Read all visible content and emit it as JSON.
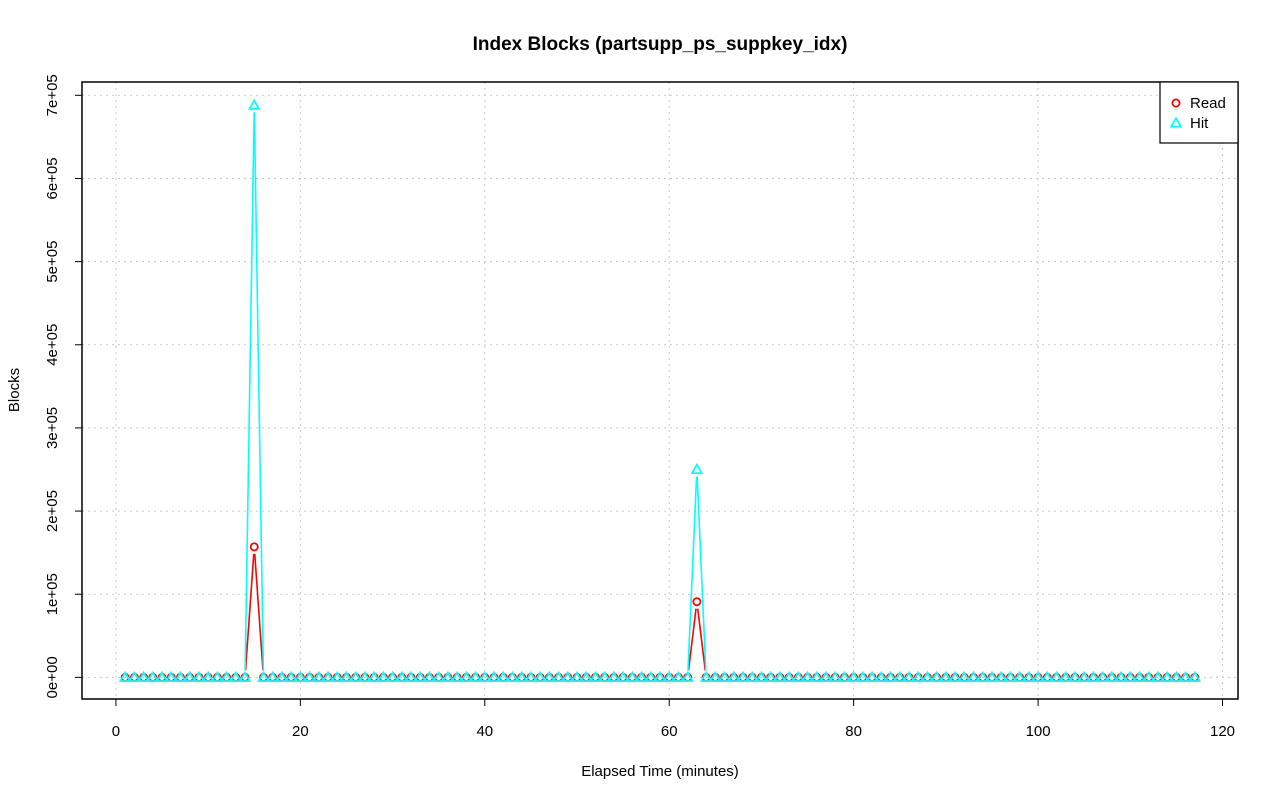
{
  "chart_data": {
    "type": "line",
    "title": "Index Blocks (partsupp_ps_suppkey_idx)",
    "xlabel": "Elapsed Time (minutes)",
    "ylabel": "Blocks",
    "xlim": [
      -3.68,
      121.68
    ],
    "ylim": [
      -26000,
      716000
    ],
    "xticks": [
      0,
      20,
      40,
      60,
      80,
      100,
      120
    ],
    "xtick_labels": [
      "0",
      "20",
      "40",
      "60",
      "80",
      "100",
      "120"
    ],
    "yticks": [
      0,
      100000,
      200000,
      300000,
      400000,
      500000,
      600000,
      700000
    ],
    "ytick_labels": [
      "0e+00",
      "1e+05",
      "2e+05",
      "3e+05",
      "4e+05",
      "5e+05",
      "6e+05",
      "7e+05"
    ],
    "grid": true,
    "legend_position": "top-right",
    "x_start": 1,
    "x_end": 117,
    "series": [
      {
        "name": "Read",
        "color": "#ff0000",
        "marker": "circle",
        "nonzero": [
          {
            "x": 15,
            "y": 157000
          },
          {
            "x": 63,
            "y": 91000
          }
        ]
      },
      {
        "name": "Hit",
        "color": "#00ffff",
        "marker": "triangle",
        "nonzero": [
          {
            "x": 15,
            "y": 688000
          },
          {
            "x": 63,
            "y": 250000
          }
        ]
      }
    ]
  }
}
